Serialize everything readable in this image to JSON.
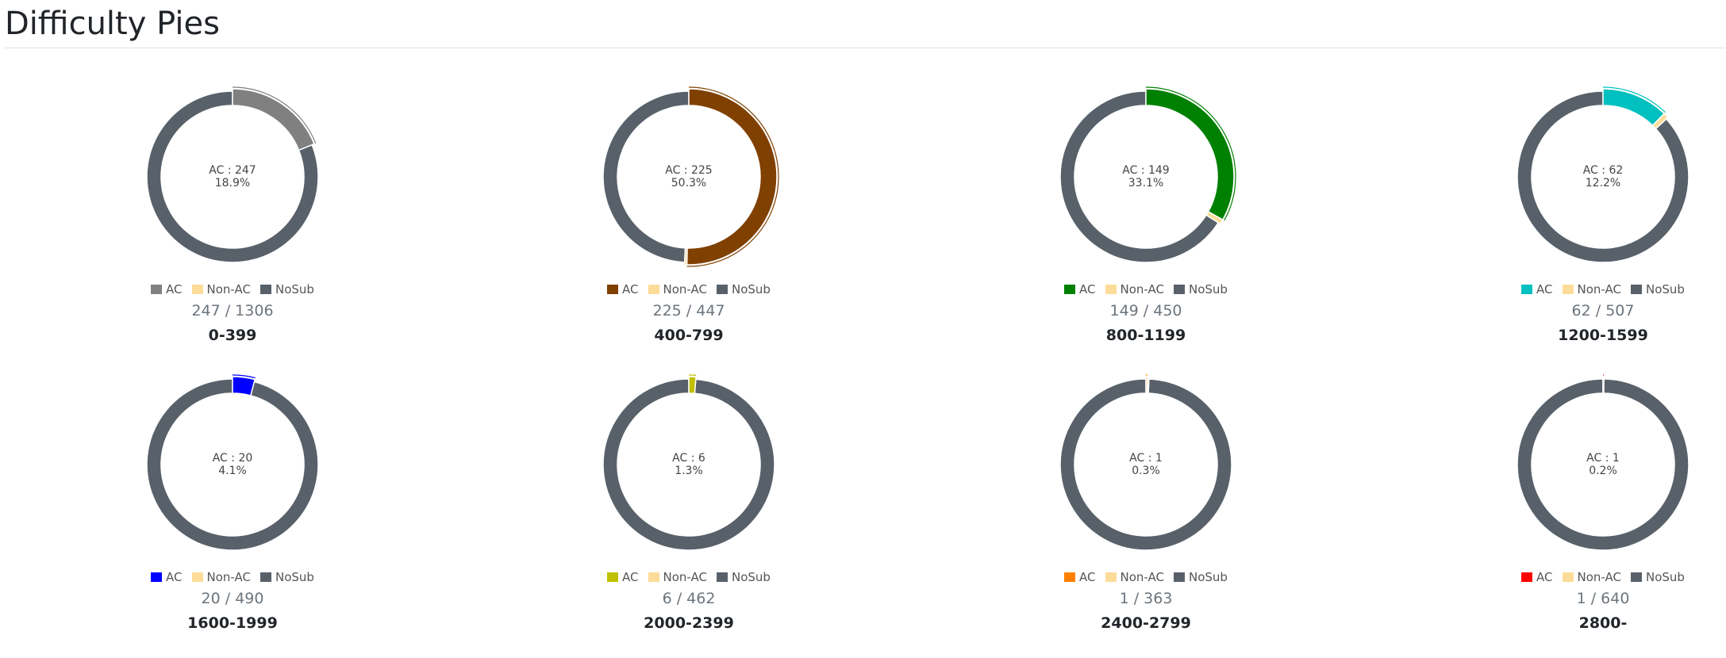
{
  "page": {
    "title": "Difficulty Pies"
  },
  "legend_labels": [
    "AC",
    "Non-AC",
    "NoSub"
  ],
  "colors": {
    "non_ac": "#fddc9a",
    "nosub": "#58616a"
  },
  "chart_data": [
    {
      "type": "pie",
      "range": "0-399",
      "ac": 247,
      "non_ac": 0,
      "total": 1306,
      "center_ac": "AC : 247",
      "center_pct": "18.9%",
      "count_label": "247 / 1306",
      "ac_color": "#808080"
    },
    {
      "type": "pie",
      "range": "400-799",
      "ac": 225,
      "non_ac": 2,
      "total": 447,
      "center_ac": "AC : 225",
      "center_pct": "50.3%",
      "count_label": "225 / 447",
      "ac_color": "#804000"
    },
    {
      "type": "pie",
      "range": "800-1199",
      "ac": 149,
      "non_ac": 4,
      "total": 450,
      "center_ac": "AC : 149",
      "center_pct": "33.1%",
      "count_label": "149 / 450",
      "ac_color": "#008000"
    },
    {
      "type": "pie",
      "range": "1200-1599",
      "ac": 62,
      "non_ac": 5,
      "total": 507,
      "center_ac": "AC : 62",
      "center_pct": "12.2%",
      "count_label": "62 / 507",
      "ac_color": "#00c0c0"
    },
    {
      "type": "pie",
      "range": "1600-1999",
      "ac": 20,
      "non_ac": 0,
      "total": 490,
      "center_ac": "AC : 20",
      "center_pct": "4.1%",
      "count_label": "20 / 490",
      "ac_color": "#0000ff"
    },
    {
      "type": "pie",
      "range": "2000-2399",
      "ac": 6,
      "non_ac": 0,
      "total": 462,
      "center_ac": "AC : 6",
      "center_pct": "1.3%",
      "count_label": "6 / 462",
      "ac_color": "#c0c000"
    },
    {
      "type": "pie",
      "range": "2400-2799",
      "ac": 1,
      "non_ac": 1,
      "total": 363,
      "center_ac": "AC : 1",
      "center_pct": "0.3%",
      "count_label": "1 / 363",
      "ac_color": "#ff8000"
    },
    {
      "type": "pie",
      "range": "2800-",
      "ac": 1,
      "non_ac": 0,
      "total": 640,
      "center_ac": "AC : 1",
      "center_pct": "0.2%",
      "count_label": "1 / 640",
      "ac_color": "#ff0000"
    }
  ]
}
